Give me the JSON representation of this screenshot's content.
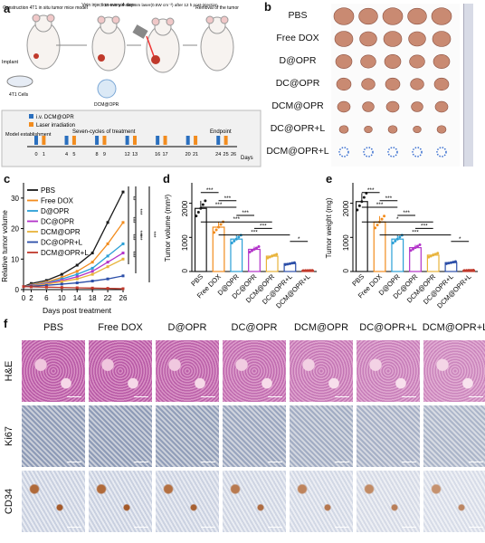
{
  "panels": {
    "a": "a",
    "b": "b",
    "c": "c",
    "d": "d",
    "e": "e",
    "f": "f"
  },
  "panel_a": {
    "steps": [
      "Construction 4T1 in situ tumor mice model",
      "Vein injection every 4 days",
      "10 min with 660 nm laser(0.5W cm⁻²) after 12 h post-injection",
      "Removal of the tumor"
    ],
    "implant": "Implant",
    "cells": "4T1 Cells",
    "drug": "DCM@OPR",
    "iv": "i.v. DCM@OPR",
    "laser": "Laser irradiation",
    "model": "Model establishment",
    "cycles": "Seven-cycles of treatment",
    "endpoint": "Endpoint",
    "days_unit": "Days",
    "days": [
      "0",
      "1",
      "4",
      "5",
      "8",
      "9",
      "12",
      "13",
      "16",
      "17",
      "20",
      "21",
      "24",
      "25",
      "26"
    ]
  },
  "panel_b": {
    "groups": [
      "PBS",
      "Free DOX",
      "D@OPR",
      "DC@OPR",
      "DCM@OPR",
      "DC@OPR+L",
      "DCM@OPR+L"
    ]
  },
  "panel_c": {
    "ylabel": "Relative tumor volume",
    "xlabel": "Days post treatment",
    "xticks": [
      "0",
      "2",
      "6",
      "10",
      "14",
      "18",
      "22",
      "26"
    ],
    "yticks": [
      "0",
      "10",
      "20",
      "30"
    ],
    "legend": [
      "PBS",
      "Free DOX",
      "D@OPR",
      "DC@OPR",
      "DCM@OPR",
      "DC@OPR+L",
      "DCM@OPR+L"
    ],
    "sig": [
      "**",
      "***",
      "***",
      "***",
      "***",
      "***",
      "***",
      "***"
    ]
  },
  "panel_d": {
    "ylabel": "Tumor volume (mm³)",
    "yticks": [
      "0",
      "1000",
      "2000"
    ],
    "sig": [
      "***",
      "***",
      "***",
      "***",
      "***",
      "***",
      "***",
      "*"
    ]
  },
  "panel_e": {
    "ylabel": "Tumor weight (mg)",
    "yticks": [
      "0",
      "1000",
      "2000"
    ],
    "sig": [
      "***",
      "***",
      "***",
      "***",
      "*",
      "***",
      "***",
      "*"
    ]
  },
  "panel_f": {
    "rows": [
      "H&E",
      "Ki67",
      "CD34"
    ],
    "cols": [
      "PBS",
      "Free DOX",
      "D@OPR",
      "DC@OPR",
      "DCM@OPR",
      "DC@OPR+L",
      "DCM@OPR+L"
    ]
  },
  "colors": [
    "#1a1a1a",
    "#f28c1e",
    "#2a9fd6",
    "#b233c9",
    "#e8b33a",
    "#2b4ea8",
    "#c0392b"
  ],
  "chart_data": [
    {
      "type": "line",
      "title": "",
      "xlabel": "Days post treatment",
      "ylabel": "Relative tumor volume",
      "x": [
        0,
        2,
        6,
        10,
        14,
        18,
        22,
        26
      ],
      "ylim": [
        0,
        35
      ],
      "series": [
        {
          "name": "PBS",
          "values": [
            1,
            2,
            3,
            5,
            8,
            12,
            22,
            32
          ]
        },
        {
          "name": "Free DOX",
          "values": [
            1,
            1.5,
            2.5,
            4,
            6,
            9,
            15,
            22
          ]
        },
        {
          "name": "D@OPR",
          "values": [
            1,
            1.4,
            2.2,
            3.5,
            5,
            7,
            11,
            15
          ]
        },
        {
          "name": "DC@OPR",
          "values": [
            1,
            1.3,
            2,
            3,
            4.2,
            6,
            9,
            12
          ]
        },
        {
          "name": "DCM@OPR",
          "values": [
            1,
            1.2,
            1.8,
            2.6,
            3.5,
            5,
            7.5,
            10
          ]
        },
        {
          "name": "DC@OPR+L",
          "values": [
            1,
            1.1,
            1.4,
            1.8,
            2.2,
            2.8,
            3.5,
            4.5
          ]
        },
        {
          "name": "DCM@OPR+L",
          "values": [
            1,
            0.9,
            0.8,
            0.7,
            0.6,
            0.5,
            0.4,
            0.3
          ]
        }
      ]
    },
    {
      "type": "bar",
      "title": "",
      "ylabel": "Tumor volume (mm³)",
      "ylim": [
        0,
        2600
      ],
      "categories": [
        "PBS",
        "Free DOX",
        "D@OPR",
        "DC@OPR",
        "DCM@OPR",
        "DC@OPR+L",
        "DCM@OPR+L"
      ],
      "values": [
        1850,
        1300,
        950,
        650,
        450,
        230,
        30
      ]
    },
    {
      "type": "bar",
      "title": "",
      "ylabel": "Tumor weight (mg)",
      "ylim": [
        0,
        2600
      ],
      "categories": [
        "PBS",
        "Free DOX",
        "D@OPR",
        "DC@OPR",
        "DCM@OPR",
        "DC@OPR+L",
        "DCM@OPR+L"
      ],
      "values": [
        2050,
        1450,
        950,
        700,
        480,
        260,
        35
      ]
    }
  ]
}
